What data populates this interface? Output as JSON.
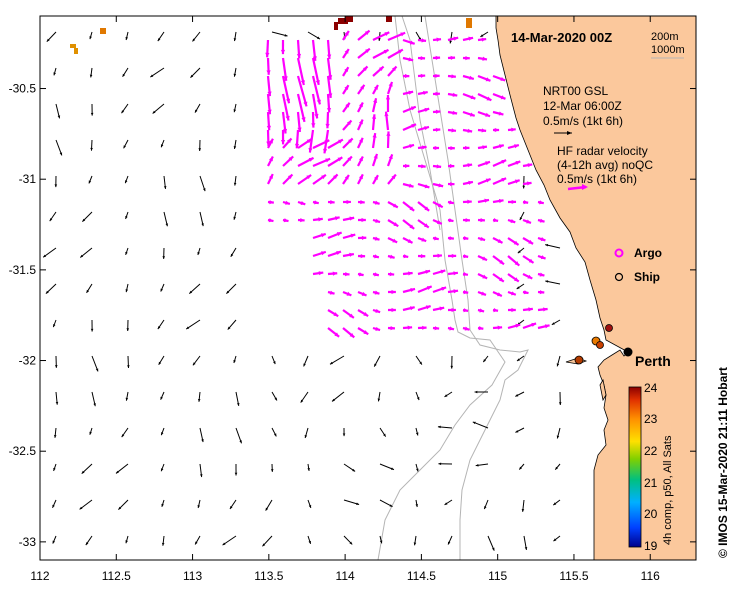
{
  "map": {
    "date_title": "14-Mar-2020 00Z",
    "contours": [
      "200m",
      "1000m"
    ],
    "x_ticks": [
      "112",
      "112.5",
      "113",
      "113.5",
      "114",
      "114.5",
      "115",
      "115.5",
      "116"
    ],
    "y_ticks": [
      "-30.5",
      "-31",
      "-31.5",
      "-32",
      "-32.5",
      "-33"
    ],
    "x_range": [
      112,
      116.3
    ],
    "y_range": [
      -33.1,
      -30.1
    ]
  },
  "legend": {
    "gsl_title": "NRT00 GSL",
    "gsl_time": "12-Mar 06:00Z",
    "gsl_scale": "0.5m/s (1kt 6h)",
    "hf_title": "HF radar velocity",
    "hf_avg": "(4-12h avg) noQC",
    "hf_scale": "0.5m/s (1kt 6h)",
    "argo": "Argo",
    "ship": "Ship",
    "city": "Perth"
  },
  "colorbar": {
    "ticks": [
      "24",
      "23",
      "22",
      "21",
      "20",
      "19"
    ],
    "caption": "4h comp, p50, All Sats"
  },
  "credit": "© IMOS 15-Mar-2020 21:11 Hobart",
  "colors": {
    "land": "#fbc89c",
    "gsl_arrow": "#000000",
    "hf_arrow": "#ff00ff",
    "contour": "#b4b4b4"
  }
}
